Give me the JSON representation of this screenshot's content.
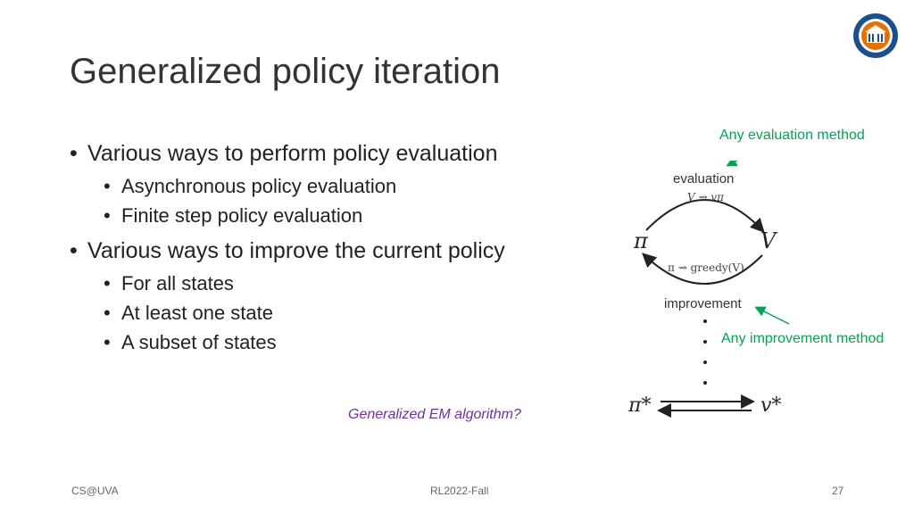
{
  "title": "Generalized policy iteration",
  "bullets": [
    {
      "text": "Various ways to perform policy evaluation",
      "sub": [
        "Asynchronous policy evaluation",
        "Finite step policy evaluation"
      ]
    },
    {
      "text": "Various ways to improve the current policy",
      "sub": [
        "For all states",
        "At least one state",
        "A subset of states"
      ]
    }
  ],
  "em_note": "Generalized EM algorithm?",
  "annotations": {
    "evaluation": "Any evaluation method",
    "improvement": "Any improvement method"
  },
  "diagram": {
    "top_label": "evaluation",
    "top_formula": "V ⇝ vπ",
    "left_node": "π",
    "right_node": "V",
    "bottom_formula": "π ⇝ greedy(V)",
    "bottom_label": "improvement",
    "final_left": "π*",
    "final_right": "v*"
  },
  "footer": {
    "left": "CS@UVA",
    "center": "RL2022-Fall",
    "page": "27"
  },
  "logo": {
    "text": "UNIVERSITY OF VIRGINIA"
  },
  "colors": {
    "green": "#00a651",
    "purple": "#7030a0",
    "logo_blue": "#1f4e8c",
    "logo_orange": "#e57200"
  }
}
